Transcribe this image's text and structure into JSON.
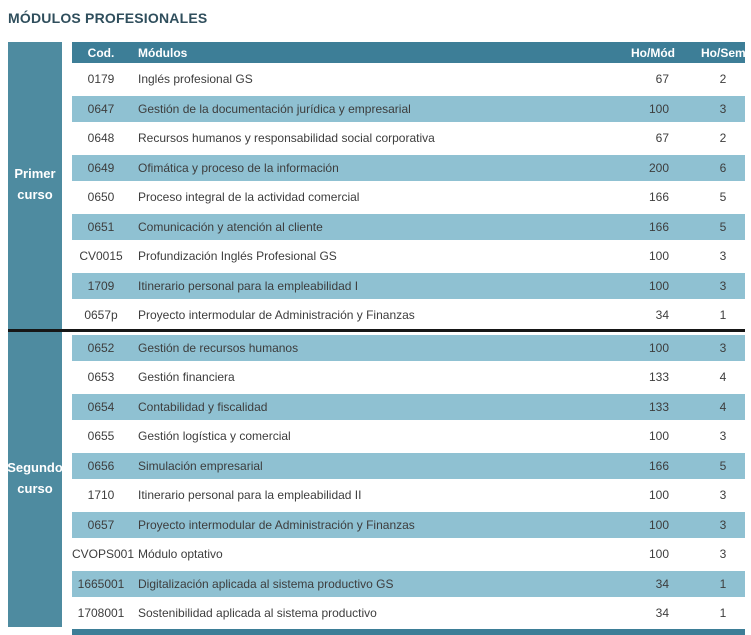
{
  "title": "MÓDULOS PROFESIONALES",
  "colors": {
    "header_bar": "#3d7e97",
    "sidebar": "#4e8ba0",
    "row_highlight": "#8fc1d2",
    "divider": "#161616",
    "title_text": "#2f4e5c",
    "body_text": "#3d3d3d"
  },
  "table": {
    "headers": {
      "cod": "Cod.",
      "modulos": "Módulos",
      "ho_mod": "Ho/Mód",
      "ho_sem": "Ho/Sem"
    },
    "sections": [
      {
        "label": "Primer curso",
        "rows": [
          {
            "cod": "0179",
            "name": "Inglés profesional GS",
            "ho_mod": "67",
            "ho_sem": "2"
          },
          {
            "cod": "0647",
            "name": "Gestión de la documentación jurídica y empresarial",
            "ho_mod": "100",
            "ho_sem": "3"
          },
          {
            "cod": "0648",
            "name": "Recursos humanos y responsabilidad social corporativa",
            "ho_mod": "67",
            "ho_sem": "2"
          },
          {
            "cod": "0649",
            "name": "Ofimática y proceso de la información",
            "ho_mod": "200",
            "ho_sem": "6"
          },
          {
            "cod": "0650",
            "name": "Proceso integral de la actividad comercial",
            "ho_mod": "166",
            "ho_sem": "5"
          },
          {
            "cod": "0651",
            "name": "Comunicación y atención al cliente",
            "ho_mod": "166",
            "ho_sem": "5"
          },
          {
            "cod": "CV0015",
            "name": "Profundización Inglés Profesional GS",
            "ho_mod": "100",
            "ho_sem": "3"
          },
          {
            "cod": "1709",
            "name": "Itinerario personal para la empleabilidad I",
            "ho_mod": "100",
            "ho_sem": "3"
          },
          {
            "cod": "0657p",
            "name": "Proyecto intermodular de Administración y Finanzas",
            "ho_mod": "34",
            "ho_sem": "1"
          }
        ]
      },
      {
        "label": "Segundo curso",
        "rows": [
          {
            "cod": "0652",
            "name": "Gestión de recursos humanos",
            "ho_mod": "100",
            "ho_sem": "3"
          },
          {
            "cod": "0653",
            "name": "Gestión financiera",
            "ho_mod": "133",
            "ho_sem": "4"
          },
          {
            "cod": "0654",
            "name": "Contabilidad y fiscalidad",
            "ho_mod": "133",
            "ho_sem": "4"
          },
          {
            "cod": "0655",
            "name": "Gestión logística y comercial",
            "ho_mod": "100",
            "ho_sem": "3"
          },
          {
            "cod": "0656",
            "name": "Simulación empresarial",
            "ho_mod": "166",
            "ho_sem": "5"
          },
          {
            "cod": "1710",
            "name": "Itinerario personal para la empleabilidad II",
            "ho_mod": "100",
            "ho_sem": "3"
          },
          {
            "cod": "0657",
            "name": "Proyecto intermodular de Administración y Finanzas",
            "ho_mod": "100",
            "ho_sem": "3"
          },
          {
            "cod": "CVOPS001",
            "name": "Módulo optativo",
            "ho_mod": "100",
            "ho_sem": "3"
          },
          {
            "cod": "1665001",
            "name": "Digitalización aplicada al sistema productivo GS",
            "ho_mod": "34",
            "ho_sem": "1"
          },
          {
            "cod": "1708001",
            "name": "Sostenibilidad aplicada al sistema productivo",
            "ho_mod": "34",
            "ho_sem": "1"
          }
        ]
      }
    ]
  }
}
